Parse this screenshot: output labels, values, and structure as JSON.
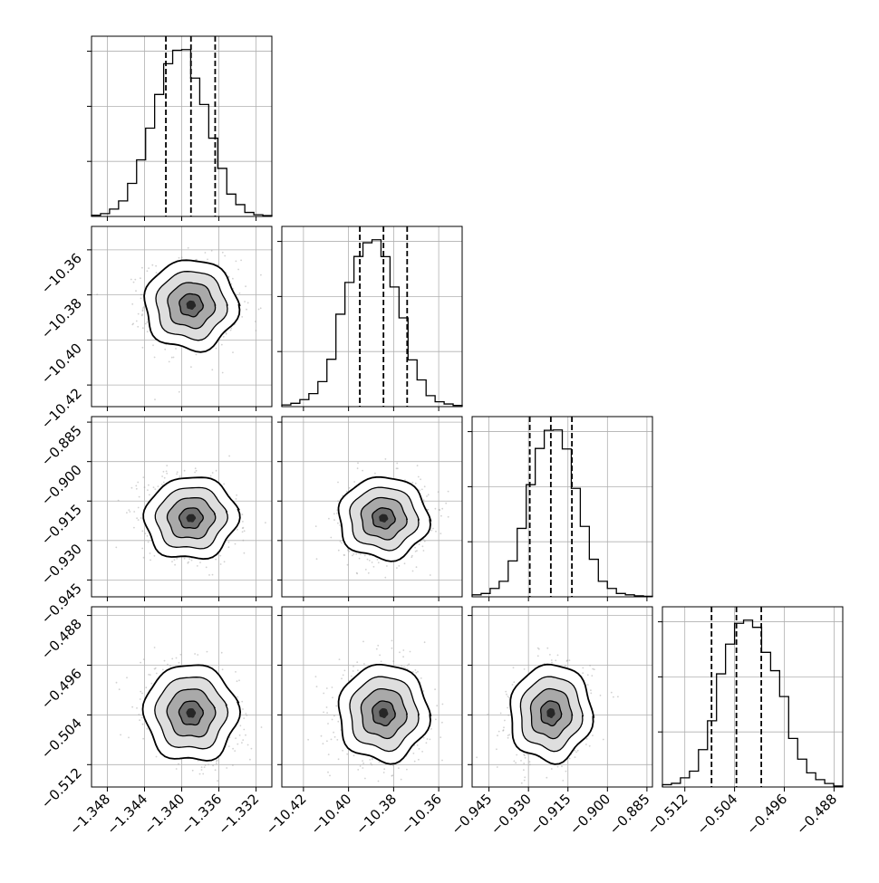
{
  "chart_data": {
    "type": "corner",
    "grid": true,
    "parameters": [
      {
        "ticks": [
          -1.348,
          -1.344,
          -1.34,
          -1.336,
          -1.332
        ],
        "tick_labels": [
          "−1.348",
          "−1.344",
          "−1.340",
          "−1.336",
          "−1.332"
        ],
        "range": [
          -1.3497,
          -1.3303
        ],
        "mean": -1.339,
        "sd": 0.0025,
        "quantiles": [
          -1.3417,
          -1.339,
          -1.3364
        ],
        "hist": [
          0.007,
          0.017,
          0.044,
          0.093,
          0.198,
          0.339,
          0.529,
          0.731,
          0.915,
          0.996,
          1.0,
          0.829,
          0.671,
          0.469,
          0.288,
          0.134,
          0.071,
          0.024,
          0.01,
          0.005
        ]
      },
      {
        "ticks": [
          -10.42,
          -10.4,
          -10.38,
          -10.36
        ],
        "tick_labels": [
          "−10.42",
          "−10.40",
          "−10.38",
          "−10.36"
        ],
        "range": [
          -10.4296,
          -10.3496
        ],
        "mean": -10.3845,
        "sd": 0.01,
        "quantiles": [
          -10.395,
          -10.3845,
          -10.374
        ],
        "hist": [
          0.01,
          0.02,
          0.042,
          0.078,
          0.15,
          0.284,
          0.554,
          0.744,
          0.9,
          0.982,
          1.0,
          0.899,
          0.717,
          0.532,
          0.28,
          0.16,
          0.066,
          0.029,
          0.016,
          0.007
        ]
      },
      {
        "ticks": [
          -0.945,
          -0.93,
          -0.915,
          -0.9,
          -0.885
        ],
        "tick_labels": [
          "−0.945",
          "−0.930",
          "−0.915",
          "−0.900",
          "−0.885"
        ],
        "range": [
          -0.9514,
          -0.8829
        ],
        "mean": -0.9215,
        "sd": 0.0078,
        "quantiles": [
          -0.9295,
          -0.9215,
          -0.9135
        ],
        "hist": [
          0.012,
          0.02,
          0.05,
          0.093,
          0.215,
          0.41,
          0.672,
          0.889,
          0.998,
          1.0,
          0.886,
          0.65,
          0.422,
          0.225,
          0.093,
          0.05,
          0.02,
          0.012,
          0.006,
          0.003
        ]
      },
      {
        "ticks": [
          -0.512,
          -0.504,
          -0.496,
          -0.488
        ],
        "tick_labels": [
          "−0.512",
          "−0.504",
          "−0.496",
          "−0.488"
        ],
        "range": [
          -0.5156,
          -0.4866
        ],
        "mean": -0.5037,
        "sd": 0.0039,
        "quantiles": [
          -0.5077,
          -0.5037,
          -0.4997
        ],
        "hist": [
          0.014,
          0.022,
          0.055,
          0.095,
          0.224,
          0.397,
          0.678,
          0.856,
          0.981,
          1.0,
          0.957,
          0.807,
          0.697,
          0.542,
          0.291,
          0.167,
          0.085,
          0.044,
          0.021,
          0.006
        ]
      }
    ],
    "correlations": [
      [
        1,
        0,
        -0.2,
        -0.25
      ],
      [
        0,
        1,
        0.05,
        0.05
      ],
      [
        -0.2,
        0.05,
        1,
        0.1
      ],
      [
        -0.25,
        0.05,
        0.1,
        1
      ]
    ]
  }
}
